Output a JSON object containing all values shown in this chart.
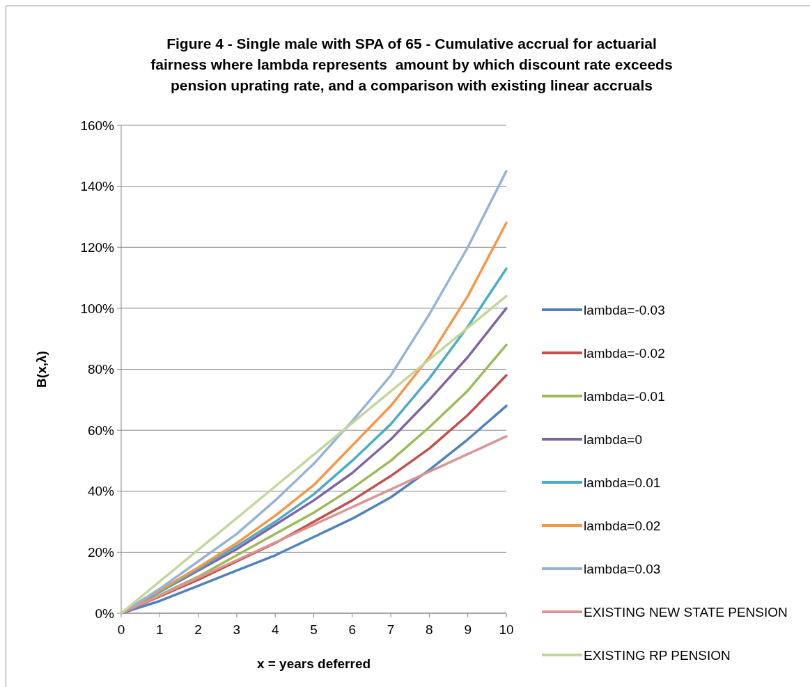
{
  "chart_data": {
    "type": "line",
    "title": "Figure 4 - Single male with SPA of 65 - Cumulative accrual for actuarial fairness where lambda represents  amount by which discount rate exceeds pension uprating rate, and a comparison with existing linear accruals",
    "xlabel": "x = years deferred",
    "ylabel": "B(x,λ)",
    "x": [
      0,
      1,
      2,
      3,
      4,
      5,
      6,
      7,
      8,
      9,
      10
    ],
    "series": [
      {
        "name": "lambda=-0.03",
        "color": "#4f81bd",
        "values": [
          0,
          4,
          9,
          14,
          19,
          25,
          31,
          38,
          47,
          57,
          68
        ]
      },
      {
        "name": "lambda=-0.02",
        "color": "#c0504d",
        "values": [
          0,
          5.5,
          11,
          17,
          23,
          30,
          37,
          45,
          54,
          65,
          78
        ]
      },
      {
        "name": "lambda=-0.01",
        "color": "#9bbb59",
        "values": [
          0,
          6,
          12,
          19,
          26,
          33,
          41,
          50,
          61,
          73,
          88
        ]
      },
      {
        "name": "lambda=0",
        "color": "#8064a2",
        "values": [
          0,
          7,
          14,
          21,
          29,
          37,
          46,
          57,
          70,
          84,
          100
        ]
      },
      {
        "name": "lambda=0.01",
        "color": "#4bacc6",
        "values": [
          0,
          7,
          14.5,
          22,
          30,
          39,
          50,
          62,
          77,
          94,
          113
        ]
      },
      {
        "name": "lambda=0.02",
        "color": "#f79646",
        "values": [
          0,
          7.5,
          15,
          23,
          32,
          42,
          55,
          68,
          84,
          104,
          128
        ]
      },
      {
        "name": "lambda=0.03",
        "color": "#95b3d7",
        "values": [
          0,
          8,
          17,
          26,
          37,
          49,
          63,
          78,
          98,
          120,
          145
        ]
      },
      {
        "name": "EXISTING NEW STATE PENSION",
        "color": "#d99694",
        "values": [
          0,
          5.8,
          11.6,
          17.4,
          23.2,
          29,
          34.8,
          40.6,
          46.4,
          52.2,
          58
        ]
      },
      {
        "name": "EXISTING RP PENSION",
        "color": "#c3d69b",
        "values": [
          0,
          10.4,
          20.8,
          31.2,
          41.6,
          52,
          62.4,
          72.8,
          83.2,
          93.6,
          104
        ]
      }
    ],
    "xlim": [
      0,
      10
    ],
    "xticks": [
      0,
      1,
      2,
      3,
      4,
      5,
      6,
      7,
      8,
      9,
      10
    ],
    "ylim": [
      0,
      160
    ],
    "yticks": [
      {
        "value": 0,
        "label": "0%"
      },
      {
        "value": 20,
        "label": "20%"
      },
      {
        "value": 40,
        "label": "40%"
      },
      {
        "value": 60,
        "label": "60%"
      },
      {
        "value": 80,
        "label": "80%"
      },
      {
        "value": 100,
        "label": "100%"
      },
      {
        "value": 120,
        "label": "120%"
      },
      {
        "value": 140,
        "label": "140%"
      },
      {
        "value": 160,
        "label": "160%"
      }
    ],
    "grid": "y",
    "legend": "right",
    "marker": "none",
    "line_style": "solid"
  }
}
